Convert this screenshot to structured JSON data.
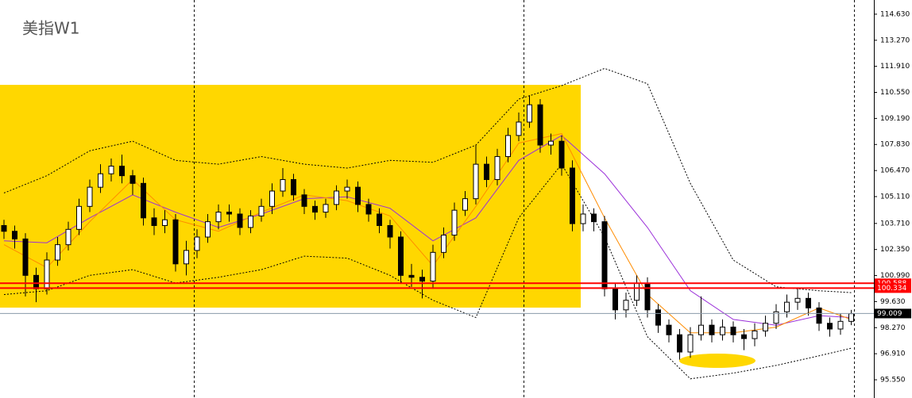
{
  "chart_data": {
    "type": "candlestick",
    "title": "美指W1",
    "ylim": [
      94.6,
      115.37
    ],
    "yticks": [
      {
        "value": 114.63,
        "label": "114.630"
      },
      {
        "value": 113.27,
        "label": "113.270"
      },
      {
        "value": 111.91,
        "label": "111.910"
      },
      {
        "value": 110.55,
        "label": "110.550"
      },
      {
        "value": 109.19,
        "label": "109.190"
      },
      {
        "value": 107.83,
        "label": "107.830"
      },
      {
        "value": 106.47,
        "label": "106.470"
      },
      {
        "value": 105.11,
        "label": "105.110"
      },
      {
        "value": 103.71,
        "label": "103.710"
      },
      {
        "value": 102.35,
        "label": "102.350"
      },
      {
        "value": 100.99,
        "label": "100.990"
      },
      {
        "value": 99.63,
        "label": "99.630"
      },
      {
        "value": 98.27,
        "label": "98.270"
      },
      {
        "value": 96.91,
        "label": "96.910"
      },
      {
        "value": 95.55,
        "label": "95.550"
      }
    ],
    "open": [
      103.6,
      103.3,
      102.9,
      101.0,
      100.3,
      101.8,
      102.6,
      103.4,
      104.6,
      105.6,
      106.3,
      106.7,
      106.2,
      105.8,
      104.0,
      103.6,
      103.9,
      101.6,
      102.3,
      103.0,
      103.8,
      104.3,
      104.2,
      103.5,
      104.1,
      104.6,
      105.4,
      106.0,
      105.2,
      104.6,
      104.3,
      104.7,
      105.4,
      105.6,
      104.7,
      104.2,
      103.6,
      103.0,
      101.0,
      100.9,
      100.7,
      102.2,
      103.1,
      104.4,
      105.0,
      106.8,
      106.0,
      107.2,
      108.3,
      109.0,
      109.9,
      107.8,
      108.0,
      106.6,
      103.7,
      104.2,
      103.8,
      100.3,
      99.2,
      99.7,
      100.6,
      99.2,
      98.4,
      97.9,
      97.0,
      97.9,
      98.4,
      97.9,
      98.3,
      97.9,
      97.7,
      98.1,
      98.5,
      99.1,
      99.6,
      99.8,
      99.3,
      98.5,
      98.2,
      98.6
    ],
    "high": [
      103.9,
      103.6,
      103.2,
      101.4,
      102.2,
      103.0,
      103.8,
      105.0,
      106.0,
      106.8,
      107.1,
      107.3,
      106.5,
      106.1,
      104.5,
      104.4,
      104.2,
      102.8,
      103.4,
      104.2,
      104.7,
      104.7,
      104.5,
      104.4,
      105.0,
      105.8,
      106.6,
      106.3,
      105.5,
      104.9,
      105.0,
      105.7,
      106.0,
      105.9,
      105.0,
      104.5,
      103.9,
      103.3,
      101.6,
      101.3,
      102.6,
      103.5,
      104.8,
      105.4,
      107.8,
      107.2,
      107.6,
      108.7,
      109.5,
      110.4,
      110.2,
      108.4,
      108.3,
      107.0,
      104.7,
      104.5,
      104.1,
      100.6,
      100.1,
      101.0,
      100.9,
      99.5,
      98.7,
      98.2,
      98.3,
      99.9,
      98.7,
      98.7,
      98.6,
      98.2,
      98.5,
      98.9,
      99.5,
      100.0,
      100.3,
      100.1,
      99.6,
      98.8,
      99.0,
      99.2
    ],
    "low": [
      102.9,
      102.4,
      99.9,
      99.6,
      100.0,
      101.5,
      102.3,
      103.1,
      104.3,
      105.3,
      105.9,
      105.8,
      105.2,
      103.6,
      103.1,
      103.2,
      101.2,
      101.0,
      101.9,
      102.7,
      103.4,
      103.8,
      103.1,
      103.2,
      103.8,
      104.2,
      105.1,
      104.9,
      104.2,
      103.9,
      104.0,
      104.4,
      105.0,
      104.3,
      103.8,
      103.2,
      102.4,
      100.6,
      100.4,
      99.8,
      100.3,
      101.9,
      102.8,
      104.1,
      104.7,
      105.6,
      105.7,
      106.9,
      108.0,
      108.7,
      107.4,
      107.3,
      106.2,
      103.3,
      103.3,
      103.3,
      99.9,
      98.7,
      98.8,
      99.4,
      98.8,
      98.0,
      97.5,
      96.6,
      96.7,
      97.6,
      97.5,
      97.6,
      97.5,
      97.1,
      97.3,
      97.8,
      98.2,
      98.8,
      99.2,
      98.9,
      98.1,
      97.8,
      97.9,
      98.4
    ],
    "close": [
      103.3,
      102.9,
      101.0,
      100.3,
      101.8,
      102.6,
      103.4,
      104.6,
      105.6,
      106.3,
      106.7,
      106.2,
      105.8,
      104.0,
      103.6,
      103.9,
      101.6,
      102.3,
      103.0,
      103.8,
      104.3,
      104.2,
      103.5,
      104.1,
      104.6,
      105.4,
      106.0,
      105.2,
      104.6,
      104.3,
      104.7,
      105.4,
      105.6,
      104.7,
      104.2,
      103.6,
      103.0,
      101.0,
      100.9,
      100.7,
      102.2,
      103.1,
      104.4,
      105.0,
      106.8,
      106.0,
      107.2,
      108.3,
      109.0,
      109.9,
      107.8,
      108.0,
      106.6,
      103.7,
      104.2,
      103.8,
      100.3,
      99.2,
      99.7,
      100.6,
      99.2,
      98.4,
      97.9,
      97.0,
      97.9,
      98.4,
      97.9,
      98.3,
      97.9,
      97.7,
      98.1,
      98.5,
      99.1,
      99.6,
      99.8,
      99.3,
      98.5,
      98.2,
      98.6,
      99.0
    ],
    "bull_color": "#ffffff",
    "bear_color": "#000000",
    "lines": [
      {
        "color": "#000000",
        "dash": true,
        "x": [
          0,
          4,
          8,
          12,
          16,
          20,
          24,
          28,
          32,
          36,
          40,
          44,
          48,
          52,
          56,
          60,
          64,
          68,
          72,
          76,
          79
        ],
        "values": [
          105.3,
          106.2,
          107.5,
          108.0,
          107.0,
          106.8,
          107.2,
          106.8,
          106.6,
          107.0,
          106.9,
          107.8,
          110.2,
          110.9,
          111.8,
          111.0,
          105.8,
          101.8,
          100.4,
          100.2,
          100.1
        ]
      },
      {
        "color": "#000000",
        "dash": true,
        "x": [
          0,
          4,
          8,
          12,
          16,
          20,
          24,
          28,
          32,
          36,
          40,
          44,
          48,
          52,
          56,
          60,
          64,
          68,
          72,
          76,
          79
        ],
        "values": [
          100.0,
          100.2,
          101.0,
          101.3,
          100.6,
          100.9,
          101.3,
          102.0,
          101.9,
          101.0,
          99.7,
          98.8,
          104.0,
          106.8,
          103.0,
          97.8,
          95.6,
          95.9,
          96.3,
          96.8,
          97.2
        ]
      },
      {
        "color": "#9b30d9",
        "dash": false,
        "x": [
          0,
          4,
          8,
          12,
          16,
          20,
          24,
          28,
          32,
          36,
          40,
          44,
          48,
          52,
          56,
          60,
          64,
          68,
          72,
          76,
          79
        ],
        "values": [
          102.8,
          102.7,
          104.0,
          105.2,
          104.3,
          103.5,
          104.2,
          105.0,
          105.1,
          104.5,
          102.8,
          104.0,
          107.0,
          108.3,
          106.3,
          103.5,
          100.2,
          98.7,
          98.4,
          98.9,
          98.8
        ]
      },
      {
        "color": "#ff8c00",
        "dash": false,
        "x": [
          0,
          4,
          8,
          12,
          16,
          20,
          24,
          28,
          32,
          36,
          40,
          44,
          48,
          52,
          56,
          60,
          64,
          68,
          72,
          76,
          79
        ],
        "values": [
          102.6,
          101.4,
          103.8,
          106.0,
          103.9,
          103.3,
          104.3,
          105.2,
          104.9,
          104.1,
          101.5,
          104.6,
          107.9,
          108.4,
          104.0,
          100.0,
          98.0,
          98.0,
          98.3,
          99.3,
          98.7
        ]
      }
    ],
    "hlines": [
      {
        "value": 100.588,
        "color": "#ff0000"
      },
      {
        "value": 100.334,
        "color": "#ff0000"
      },
      {
        "value": 99.009,
        "color": "#8a9aa8"
      }
    ]
  }
}
